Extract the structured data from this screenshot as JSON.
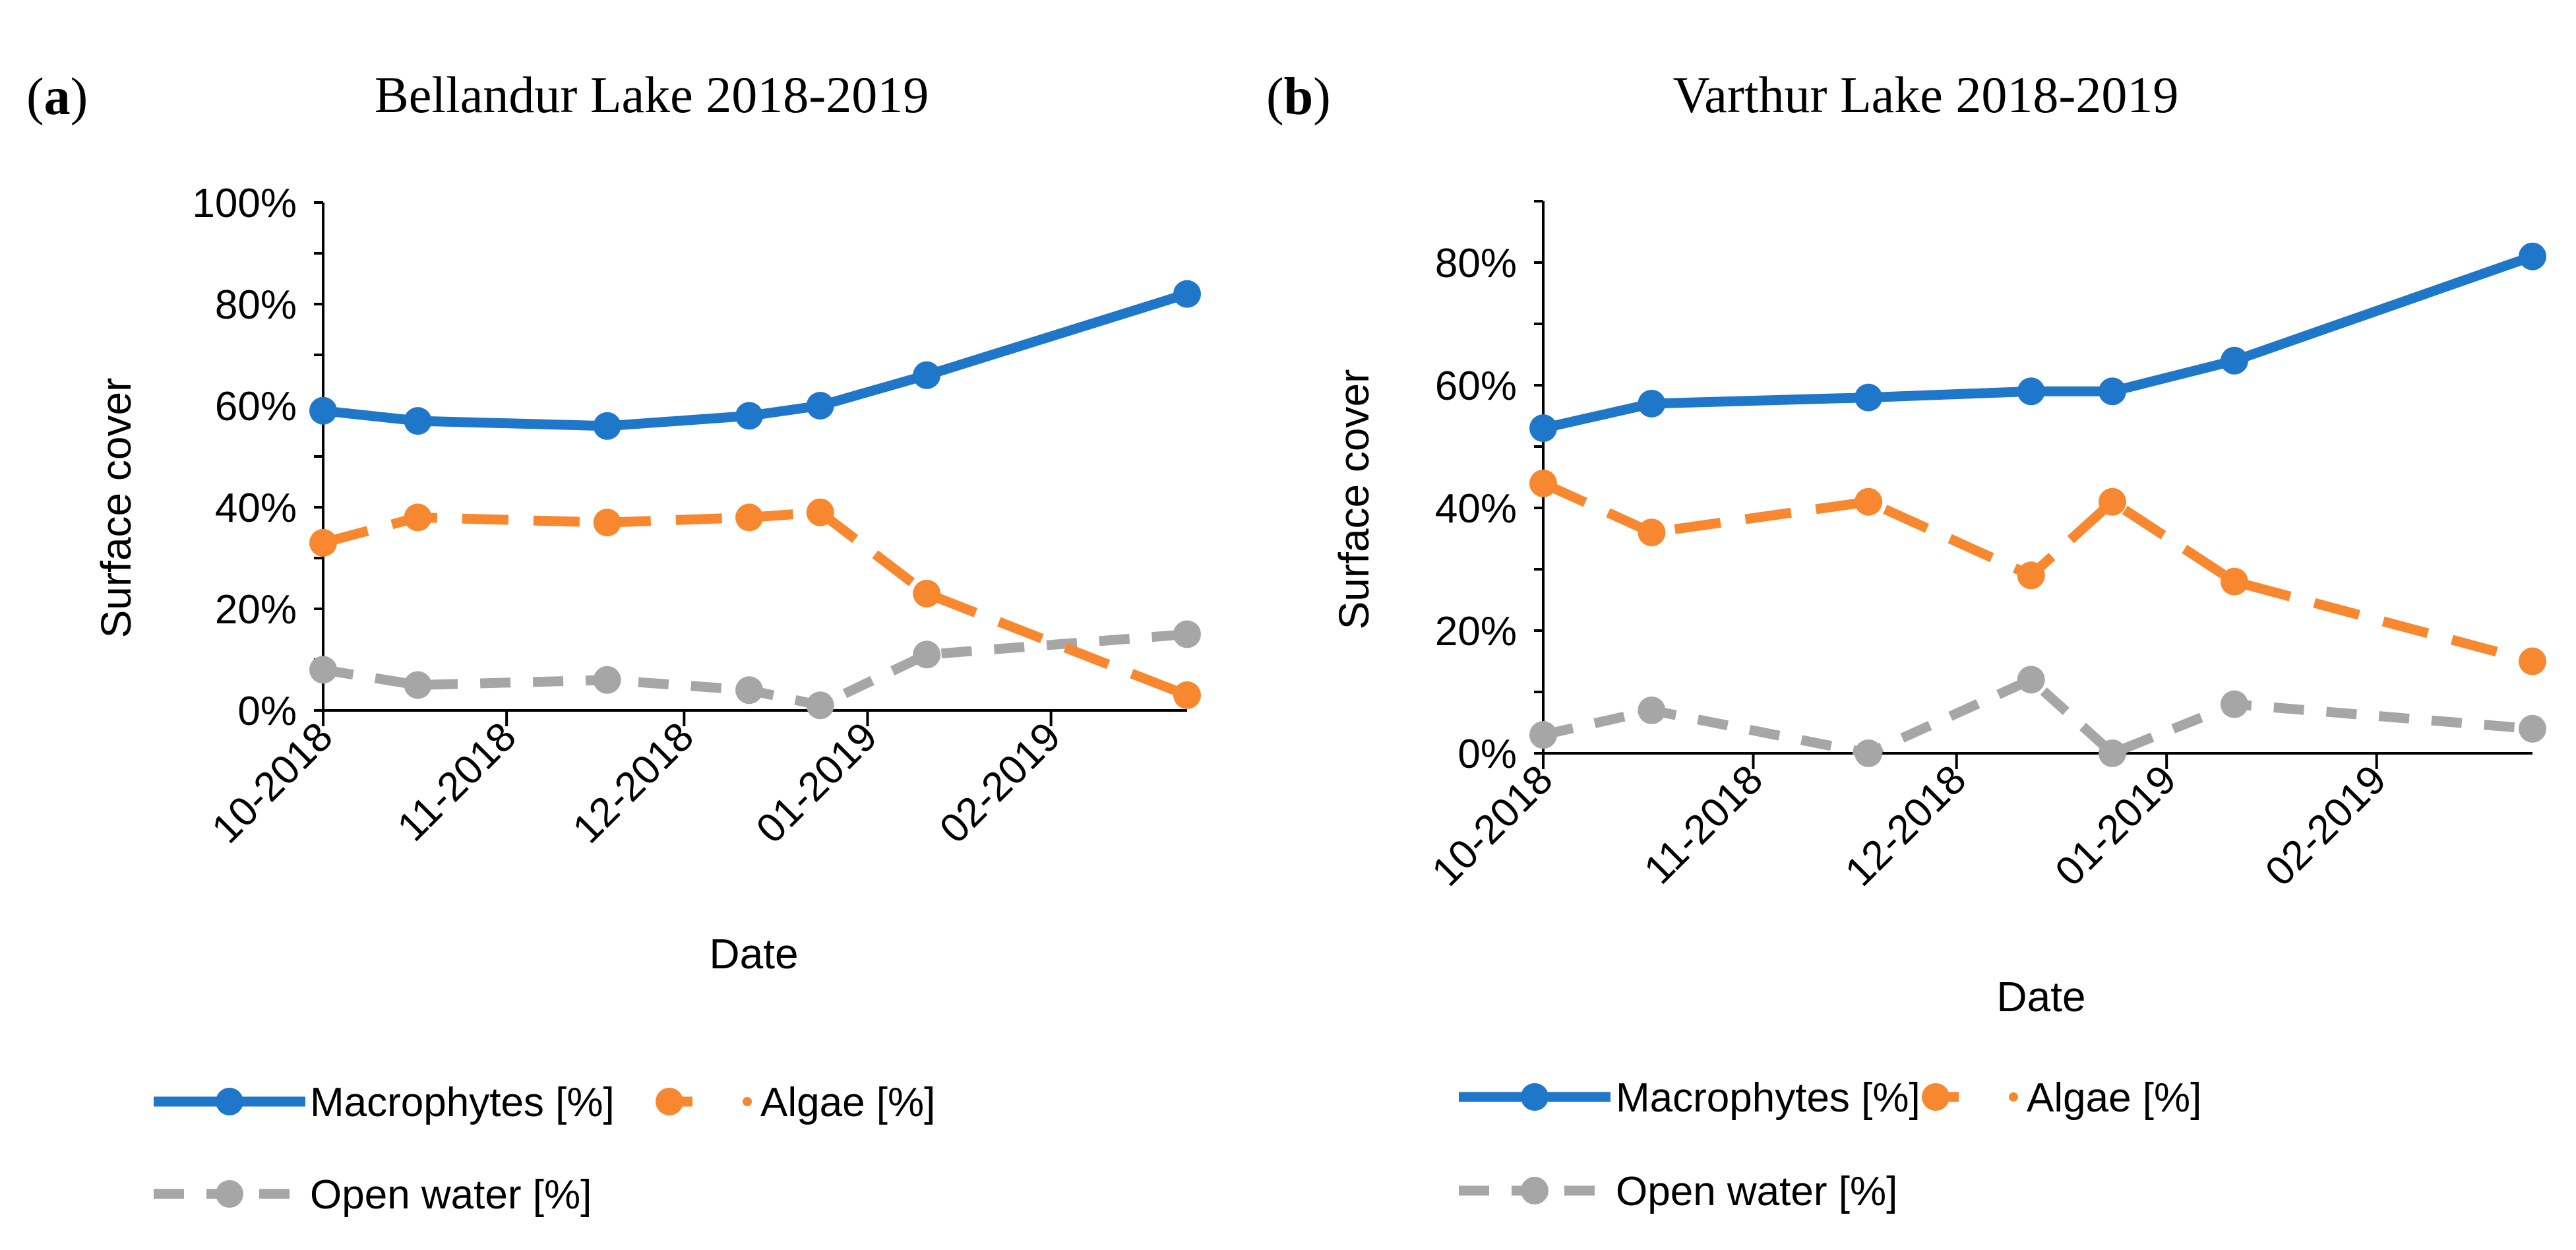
{
  "colors": {
    "macrophytes": "#1f77c9",
    "algae": "#f7882f",
    "open_water": "#a6a6a6",
    "axis": "#000000"
  },
  "chart_data": [
    {
      "panel_label": "a",
      "type": "line",
      "title": "Bellandur Lake 2018-2019",
      "xlabel": "Date",
      "ylabel": "Surface cover",
      "x_ticks": [
        "10-2018",
        "11-2018",
        "12-2018",
        "01-2019",
        "02-2019"
      ],
      "x_tick_days": [
        0,
        31,
        61,
        92,
        123
      ],
      "xlim": [
        0,
        146
      ],
      "ylim": [
        0,
        100
      ],
      "y_ticks": [
        0,
        20,
        40,
        60,
        80,
        100
      ],
      "y_tick_labels": [
        "0%",
        "20%",
        "40%",
        "60%",
        "80%",
        "100%"
      ],
      "x_days": [
        0,
        16,
        48,
        72,
        84,
        102,
        146
      ],
      "series": [
        {
          "name": "Macrophytes [%]",
          "key": "macrophytes",
          "style": "solid",
          "values": [
            59,
            57,
            56,
            58,
            60,
            66,
            82
          ]
        },
        {
          "name": "Algae [%]",
          "key": "algae",
          "style": "dashed",
          "values": [
            33,
            38,
            37,
            38,
            39,
            23,
            3
          ]
        },
        {
          "name": "Open water [%]",
          "key": "open_water",
          "style": "dashed",
          "values": [
            8,
            5,
            6,
            4,
            1,
            11,
            15
          ]
        }
      ]
    },
    {
      "panel_label": "b",
      "type": "line",
      "title": "Varthur Lake 2018-2019",
      "xlabel": "Date",
      "ylabel": "Surface cover",
      "x_ticks": [
        "10-2018",
        "11-2018",
        "12-2018",
        "01-2019",
        "02-2019"
      ],
      "x_tick_days": [
        0,
        31,
        61,
        92,
        123
      ],
      "xlim": [
        0,
        146
      ],
      "ylim": [
        0,
        90
      ],
      "y_ticks": [
        0,
        20,
        40,
        60,
        80
      ],
      "y_tick_labels": [
        "0%",
        "20%",
        "40%",
        "60%",
        "80%"
      ],
      "x_days": [
        0,
        16,
        48,
        72,
        84,
        102,
        146
      ],
      "series": [
        {
          "name": "Macrophytes [%]",
          "key": "macrophytes",
          "style": "solid",
          "values": [
            53,
            57,
            58,
            59,
            59,
            64,
            81
          ]
        },
        {
          "name": "Algae [%]",
          "key": "algae",
          "style": "dashed",
          "values": [
            44,
            36,
            41,
            29,
            41,
            28,
            15
          ]
        },
        {
          "name": "Open water [%]",
          "key": "open_water",
          "style": "dashed",
          "values": [
            3,
            7,
            0,
            12,
            0,
            8,
            4
          ]
        }
      ]
    }
  ]
}
